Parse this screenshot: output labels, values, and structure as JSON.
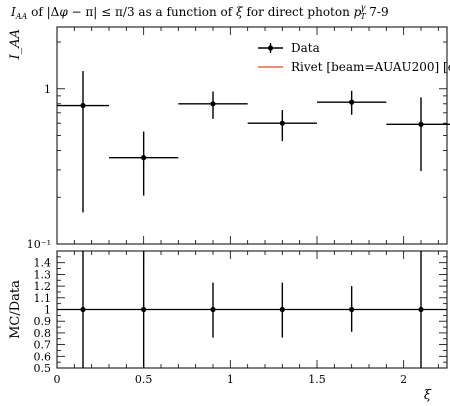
{
  "chart_data": [
    {
      "type": "scatter",
      "panel": "main",
      "title": "I_AA of |Δφ − π| ≤ π/3 as a function of ξ for direct photon p_T^γ 7-9",
      "ylabel": "I_AA",
      "yscale": "log",
      "xlim": [
        0,
        2.25
      ],
      "ylim": [
        0.1,
        2.5
      ],
      "ytick_labels": [
        "1",
        "10⁻¹"
      ],
      "ytick_values": [
        1,
        0.1
      ],
      "legend_position": "top-right",
      "series": [
        {
          "name": "Data",
          "color": "#000000",
          "points": [
            {
              "x": 0.15,
              "x_lo": 0.0,
              "x_hi": 0.3,
              "y": 0.78,
              "y_lo": 0.16,
              "y_hi": 1.3
            },
            {
              "x": 0.5,
              "x_lo": 0.3,
              "x_hi": 0.7,
              "y": 0.36,
              "y_lo": 0.205,
              "y_hi": 0.53
            },
            {
              "x": 0.9,
              "x_lo": 0.7,
              "x_hi": 1.1,
              "y": 0.8,
              "y_lo": 0.64,
              "y_hi": 0.96
            },
            {
              "x": 1.3,
              "x_lo": 1.1,
              "x_hi": 1.5,
              "y": 0.6,
              "y_lo": 0.46,
              "y_hi": 0.73
            },
            {
              "x": 1.7,
              "x_lo": 1.5,
              "x_hi": 1.9,
              "y": 0.82,
              "y_lo": 0.68,
              "y_hi": 0.97
            },
            {
              "x": 2.1,
              "x_lo": 1.9,
              "x_hi": 2.3,
              "y": 0.59,
              "y_lo": 0.295,
              "y_hi": 0.88
            }
          ]
        },
        {
          "name": "Rivet [beam=AUAU200] [c",
          "color": "#ee6644",
          "points": []
        }
      ]
    },
    {
      "type": "scatter",
      "panel": "ratio",
      "xlabel": "ξ",
      "ylabel": "MC/Data",
      "xlim": [
        0,
        2.25
      ],
      "ylim": [
        0.5,
        1.5
      ],
      "xticks": [
        0,
        0.5,
        1,
        1.5,
        2
      ],
      "xtick_labels": [
        "0",
        "0.5",
        "1",
        "1.5",
        "2"
      ],
      "yticks": [
        0.5,
        0.6,
        0.7,
        0.8,
        0.9,
        1,
        1.1,
        1.2,
        1.3,
        1.4
      ],
      "ytick_labels": [
        "0.5",
        "0.6",
        "0.7",
        "0.8",
        "0.9",
        "1",
        "1.1",
        "1.2",
        "1.3",
        "1.4"
      ],
      "reference_line": 1,
      "series": [
        {
          "name": "Data",
          "color": "#000000",
          "points": [
            {
              "x": 0.15,
              "x_lo": 0.0,
              "x_hi": 0.3,
              "y": 1,
              "y_lo": 0.5,
              "y_hi": 1.5
            },
            {
              "x": 0.5,
              "x_lo": 0.3,
              "x_hi": 0.7,
              "y": 1,
              "y_lo": 0.5,
              "y_hi": 1.5
            },
            {
              "x": 0.9,
              "x_lo": 0.7,
              "x_hi": 1.1,
              "y": 1,
              "y_lo": 0.76,
              "y_hi": 1.23
            },
            {
              "x": 1.3,
              "x_lo": 1.1,
              "x_hi": 1.5,
              "y": 1,
              "y_lo": 0.76,
              "y_hi": 1.23
            },
            {
              "x": 1.7,
              "x_lo": 1.5,
              "x_hi": 1.9,
              "y": 1,
              "y_lo": 0.81,
              "y_hi": 1.2
            },
            {
              "x": 2.1,
              "x_lo": 1.9,
              "x_hi": 2.3,
              "y": 1,
              "y_lo": 0.5,
              "y_hi": 1.5
            }
          ]
        }
      ]
    }
  ]
}
